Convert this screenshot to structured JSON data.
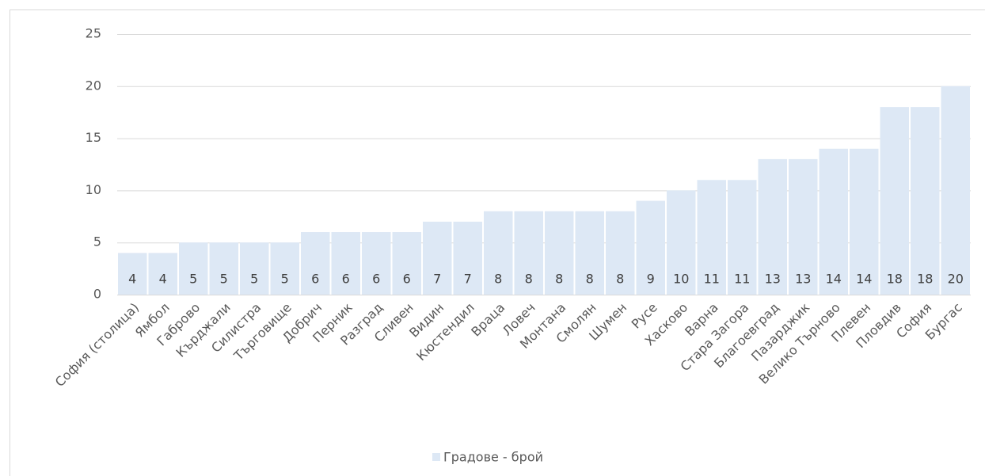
{
  "chart_data": {
    "type": "bar",
    "categories": [
      "София (столица)",
      "Ямбол",
      "Габрово",
      "Кърджали",
      "Силистра",
      "Търговище",
      "Добрич",
      "Перник",
      "Разград",
      "Сливен",
      "Видин",
      "Кюстендил",
      "Враца",
      "Ловеч",
      "Монтана",
      "Смолян",
      "Шумен",
      "Русе",
      "Хасково",
      "Варна",
      "Стара Загора",
      "Благоевград",
      "Пазарджик",
      "Велико Търново",
      "Плевен",
      "Пловдив",
      "София",
      "Бургас"
    ],
    "series": [
      {
        "name": "Градове - брой",
        "color": "#dde8f5",
        "values": [
          4,
          4,
          5,
          5,
          5,
          5,
          6,
          6,
          6,
          6,
          7,
          7,
          8,
          8,
          8,
          8,
          8,
          9,
          10,
          11,
          11,
          13,
          13,
          14,
          14,
          18,
          18,
          20
        ]
      }
    ],
    "ylim": [
      0,
      25
    ],
    "yticks": [
      0,
      5,
      10,
      15,
      20,
      25
    ],
    "grid": true,
    "legend": "bottom"
  }
}
